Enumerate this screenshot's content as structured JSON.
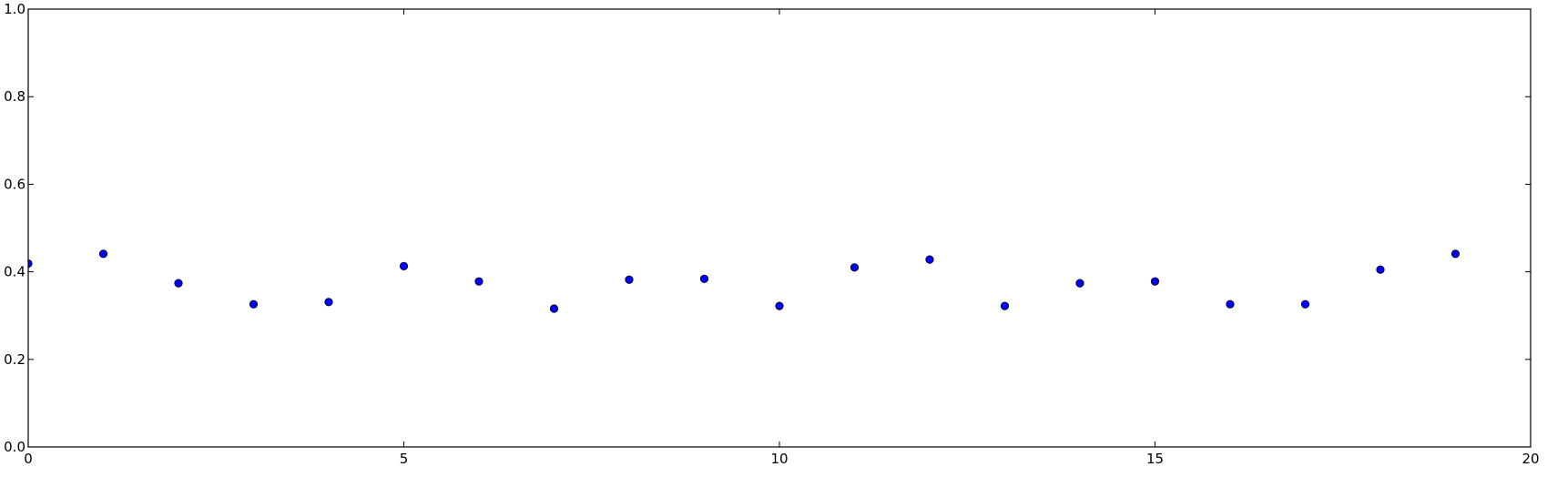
{
  "chart_data": {
    "type": "scatter",
    "title": "",
    "xlabel": "",
    "ylabel": "",
    "xlim": [
      0,
      20
    ],
    "ylim": [
      0.0,
      1.0
    ],
    "xticks": [
      0,
      5,
      10,
      15,
      20
    ],
    "xtick_labels": [
      "0",
      "5",
      "10",
      "15",
      "20"
    ],
    "yticks": [
      0.0,
      0.2,
      0.4,
      0.6,
      0.8,
      1.0
    ],
    "ytick_labels": [
      "0.0",
      "0.2",
      "0.4",
      "0.6",
      "0.8",
      "1.0"
    ],
    "grid": false,
    "legend": "none",
    "marker_color": "#0000ff",
    "series": [
      {
        "x": [
          0,
          1,
          2,
          3,
          4,
          5,
          6,
          7,
          8,
          9,
          10,
          11,
          12,
          13,
          14,
          15,
          16,
          17,
          18,
          19
        ],
        "y": [
          0.419,
          0.441,
          0.374,
          0.326,
          0.331,
          0.413,
          0.378,
          0.316,
          0.382,
          0.384,
          0.322,
          0.41,
          0.428,
          0.322,
          0.374,
          0.378,
          0.326,
          0.326,
          0.405,
          0.441
        ]
      }
    ]
  }
}
